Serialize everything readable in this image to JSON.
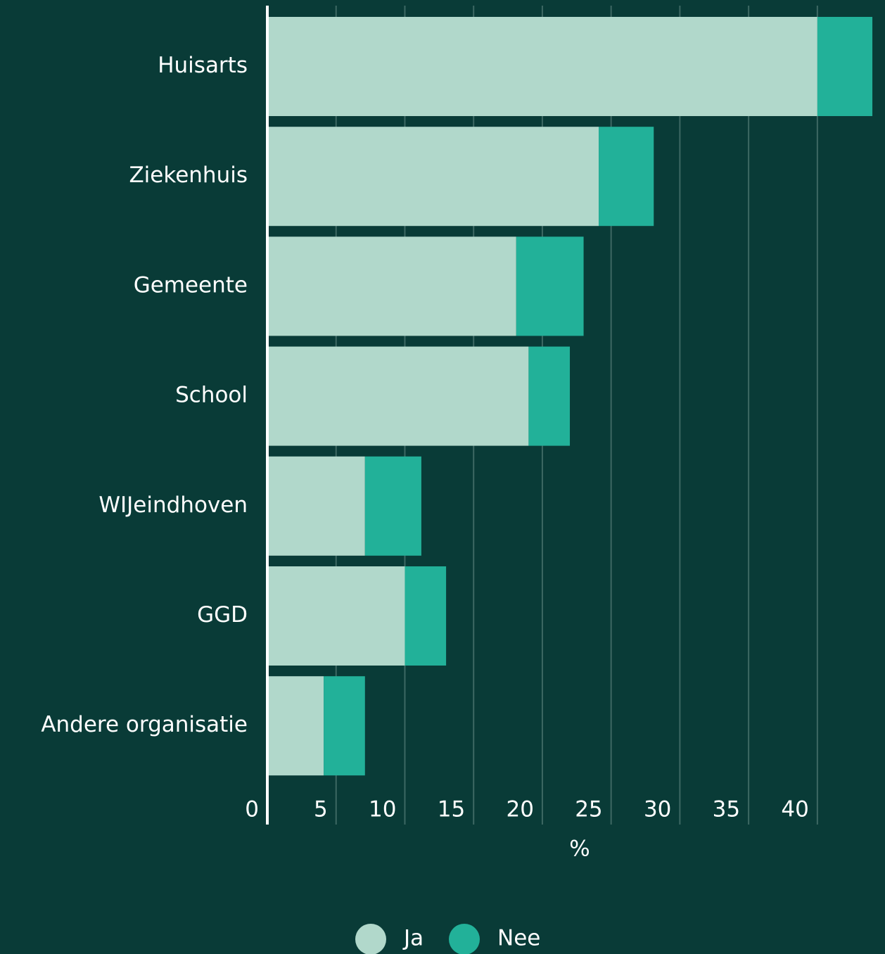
{
  "chart_data": {
    "type": "stacked_bar_horizontal",
    "categories": [
      "Huisarts",
      "Ziekenhuis",
      "Gemeente",
      "School",
      "WIJeindhoven",
      "GGD",
      "Andere organisatie"
    ],
    "series": [
      {
        "name": "Ja",
        "color": "#b1d8cb",
        "values": [
          40.0,
          24.1,
          18.1,
          19.0,
          7.1,
          10.0,
          4.1
        ]
      },
      {
        "name": "Nee",
        "color": "#22b199",
        "values": [
          4.0,
          4.0,
          4.9,
          3.0,
          4.1,
          3.0,
          3.0
        ]
      }
    ],
    "xlim": [
      0,
      44.1
    ],
    "xticks": [
      0,
      5,
      10,
      15,
      20,
      25,
      30,
      35,
      40
    ],
    "x_label": "%",
    "grid": true,
    "legend": "bottom"
  }
}
